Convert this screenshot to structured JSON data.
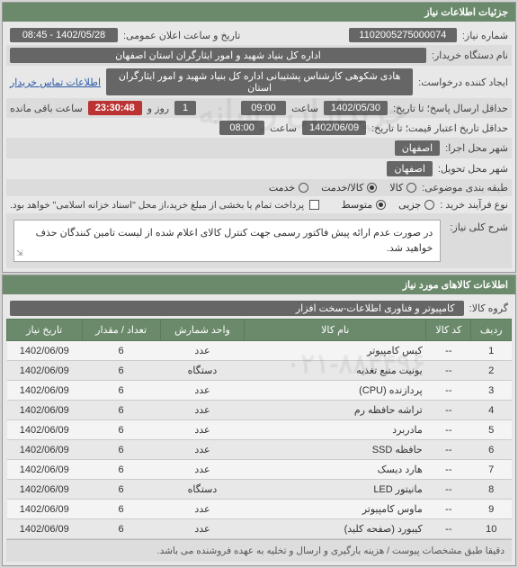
{
  "panel_title": "جزئیات اطلاعات نیاز",
  "fields": {
    "need_no_label": "شماره نیاز:",
    "need_no": "1102005275000074",
    "announce_label": "تاریخ و ساعت اعلان عمومی:",
    "announce_date": "1402/05/28 - 08:45",
    "buyer_label": "نام دستگاه خریدار:",
    "buyer": "اداره کل بنیاد شهید و امور ایثارگران استان اصفهان",
    "creator_label": "ایجاد کننده درخواست:",
    "creator": "هادی شکوهی کارشناس پشتیبانی اداره کل بنیاد شهید و امور ایثارگران استان",
    "contact_link": "اطلاعات تماس خریدار",
    "deadline_label": "حداقل ارسال پاسخ؛ تا تاریخ:",
    "deadline_date": "1402/05/30",
    "deadline_time_label": "ساعت",
    "deadline_time": "09:00",
    "remain_label": "روز و",
    "remain_days": "1",
    "remain_time": "23:30:48",
    "remain_suffix": "ساعت باقی مانده",
    "valid_label": "حداقل تاریخ اعتبار قیمت؛ تا تاریخ:",
    "valid_date": "1402/06/09",
    "valid_time": "08:00",
    "exec_city_label": "شهر محل اجرا:",
    "exec_city": "اصفهان",
    "deliv_city_label": "شهر محل تحویل:",
    "deliv_city": "اصفهان",
    "budget_label": "طبقه بندی موضوعی:",
    "budget_radios": [
      "کالا",
      "کالا/خدمت",
      "خدمت"
    ],
    "process_label": "نوع فرآیند خرید :",
    "process_radios": [
      "جزیی",
      "متوسط"
    ],
    "partial_pay": "پرداخت تمام یا بخشی از مبلغ خرید،از محل \"اسناد خزانه اسلامی\" خواهد بود.",
    "desc_label": "شرح کلی نیاز:",
    "desc_text": "در صورت عدم ارائه پیش فاکتور رسمی جهت کنترل کالای اعلام شده از لیست تامین کنندگان حذف خواهید شد.",
    "goods_panel": "اطلاعات کالاهای مورد نیاز",
    "group_label": "گروه کالا:",
    "group_value": "کامپیوتر و فناوری اطلاعات-سخت افزار"
  },
  "table": {
    "columns": [
      "ردیف",
      "کد کالا",
      "نام کالا",
      "واحد شمارش",
      "تعداد / مقدار",
      "تاریخ نیاز"
    ],
    "rows": [
      [
        "1",
        "--",
        "کیس کامپیوتر",
        "عدد",
        "6",
        "1402/06/09"
      ],
      [
        "2",
        "--",
        "یونیت منبع تغذیه",
        "دستگاه",
        "6",
        "1402/06/09"
      ],
      [
        "3",
        "--",
        "پردازنده (CPU)",
        "عدد",
        "6",
        "1402/06/09"
      ],
      [
        "4",
        "--",
        "تراشه حافظه رم",
        "عدد",
        "6",
        "1402/06/09"
      ],
      [
        "5",
        "--",
        "مادربرد",
        "عدد",
        "6",
        "1402/06/09"
      ],
      [
        "6",
        "--",
        "حافظه SSD",
        "عدد",
        "6",
        "1402/06/09"
      ],
      [
        "7",
        "--",
        "هارد دیسک",
        "عدد",
        "6",
        "1402/06/09"
      ],
      [
        "8",
        "--",
        "مانیتور LED",
        "دستگاه",
        "6",
        "1402/06/09"
      ],
      [
        "9",
        "--",
        "ماوس کامپیوتر",
        "عدد",
        "6",
        "1402/06/09"
      ],
      [
        "10",
        "--",
        "کیبورد (صفحه کلید)",
        "عدد",
        "6",
        "1402/06/09"
      ]
    ]
  },
  "footer": "دقیقا طبق مشخصات پیوست / هزینه بارگیری و ارسال و تخلیه به عهده فروشنده می باشد.",
  "watermarks": [
    "۰۲۱-۸۸۳۴۹۶",
    "خریداران رسانه"
  ]
}
